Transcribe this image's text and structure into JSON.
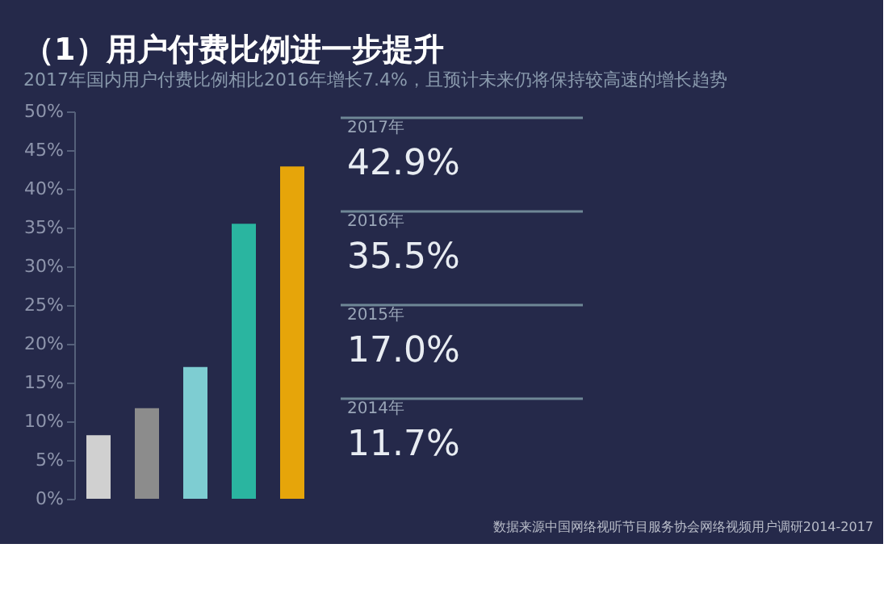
{
  "chart_data": {
    "type": "bar",
    "title": "（1）用户付费比例进一步提升",
    "subtitle": "2017年国内用户付费比例相比2016年增长7.4%，且预计未来仍将保持较高速的增长趋势",
    "categories": [
      null,
      null,
      null,
      null,
      null
    ],
    "values": [
      8.2,
      11.7,
      17.0,
      35.5,
      42.9
    ],
    "colors": [
      "#d0d0d0",
      "#8c8c8c",
      "#7ecdd2",
      "#2ab5a0",
      "#e6a50a"
    ],
    "ylim": [
      0,
      50
    ],
    "yticks": [
      {
        "value": 0,
        "label": "0%"
      },
      {
        "value": 5,
        "label": "5%"
      },
      {
        "value": 10,
        "label": "10%"
      },
      {
        "value": 15,
        "label": "15%"
      },
      {
        "value": 20,
        "label": "20%"
      },
      {
        "value": 25,
        "label": "25%"
      },
      {
        "value": 30,
        "label": "30%"
      },
      {
        "value": 35,
        "label": "35%"
      },
      {
        "value": 40,
        "label": "40%"
      },
      {
        "value": 45,
        "label": "45%"
      },
      {
        "value": 50,
        "label": "50%"
      }
    ],
    "tick_labels": "y",
    "grid": false,
    "annotations": [
      "2017年",
      "42.9%",
      "2016年",
      "35.5%",
      "2015年",
      "17.0%",
      "2014年",
      "11.7%",
      "数据来源中国网络视听节目服务协会网络视频用户调研2014-2017"
    ]
  }
}
